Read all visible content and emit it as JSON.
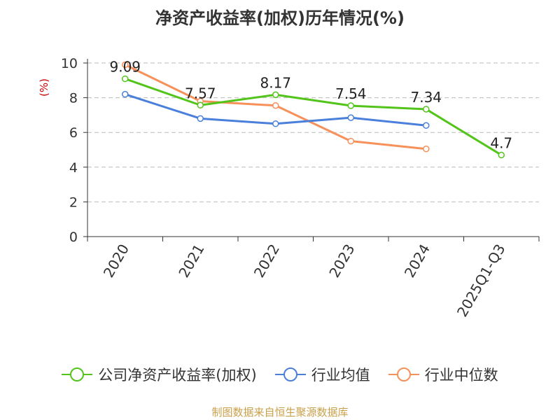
{
  "colors": {
    "company": "#52c41a",
    "industry_avg": "#4a7fdb",
    "industry_median": "#f79059",
    "grid": "#bbbbbb",
    "axis": "#333333",
    "ylabel": "#cc0000",
    "source": "#c9a04a"
  },
  "legend": {
    "company": "公司净资产收益率(加权)",
    "industry_avg": "行业均值",
    "industry_median": "行业中位数"
  },
  "source": "制图数据来自恒生聚源数据库",
  "chart_data": {
    "type": "line",
    "title": "净资产收益率(加权)历年情况(%)",
    "xlabel": "",
    "ylabel": "(%)",
    "ylim": [
      0,
      10
    ],
    "yticks": [
      0,
      2,
      4,
      6,
      8,
      10
    ],
    "grid": true,
    "legend_position": "bottom",
    "categories": [
      "2020",
      "2021",
      "2022",
      "2023",
      "2024",
      "2025Q1-Q3"
    ],
    "series": [
      {
        "key": "company",
        "name": "公司净资产收益率(加权)",
        "values": [
          9.09,
          7.57,
          8.17,
          7.54,
          7.34,
          4.7
        ],
        "labels": [
          "9.09",
          "7.57",
          "8.17",
          "7.54",
          "7.34",
          "4.7"
        ]
      },
      {
        "key": "industry_avg",
        "name": "行业均值",
        "values": [
          8.2,
          6.8,
          6.5,
          6.85,
          6.4,
          null
        ]
      },
      {
        "key": "industry_median",
        "name": "行业中位数",
        "values": [
          9.9,
          7.8,
          7.55,
          5.5,
          5.05,
          null
        ]
      }
    ]
  }
}
